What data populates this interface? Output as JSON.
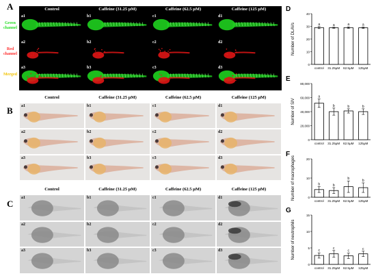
{
  "panels": {
    "A": {
      "letter": "A",
      "headers": [
        "Control",
        "Caffeine (31.25 μM)",
        "Caffeine (62.5 μM)",
        "Caffeine (125 μM)"
      ],
      "rows": [
        {
          "label": "Green channel",
          "color": "#22dd22",
          "cells": [
            "a1",
            "b1",
            "c1",
            "d1"
          ]
        },
        {
          "label": "Red channel",
          "color": "#ff2a2a",
          "cells": [
            "a2",
            "b2",
            "c2",
            "d2"
          ]
        },
        {
          "label": "Merged",
          "color": "#f2c200",
          "cells": [
            "a3",
            "b3",
            "c3",
            "d3"
          ]
        }
      ]
    },
    "B": {
      "letter": "B",
      "headers": [
        "Control",
        "Caffeine (31.25 μM)",
        "Caffeine (62.5 μM)",
        "Caffeine (125 μM)"
      ],
      "rows": [
        {
          "cells": [
            "a1",
            "b1",
            "c1",
            "d1"
          ]
        },
        {
          "cells": [
            "a2",
            "b2",
            "c2",
            "d2"
          ]
        },
        {
          "cells": [
            "a3",
            "b3",
            "c3",
            "d3"
          ]
        }
      ]
    },
    "C": {
      "letter": "C",
      "headers": [
        "Control",
        "Caffeine (31.25 μM)",
        "Caffeine (62.5 μM)",
        "Caffeine (125 μM)"
      ],
      "rows": [
        {
          "cells": [
            "a1",
            "b1",
            "c1",
            "d1"
          ]
        },
        {
          "cells": [
            "a2",
            "b2",
            "c2",
            "d2"
          ]
        },
        {
          "cells": [
            "a3",
            "b3",
            "c3",
            "d3"
          ]
        }
      ]
    }
  },
  "colors": {
    "fluor_bg": "#000000",
    "green": "#1fd11f",
    "red": "#e01515",
    "bright_bg": "#e6e4e2",
    "bright_embryo": "#d9a38c",
    "bright_yolk": "#e8b46a",
    "gray_bg": "#d4d4d4",
    "gray_embryo": "#8a8a8a"
  },
  "chart_data": [
    {
      "letter": "D",
      "type": "bar",
      "categories": [
        "control",
        "31.25μM",
        "62.5μM",
        "125μM"
      ],
      "values": [
        29,
        28.9,
        29,
        28.9
      ],
      "errors": [
        0.8,
        0.4,
        0.6,
        0.5
      ],
      "letters": [
        "a",
        "a",
        "a",
        "a"
      ],
      "ylabel": "Number of DLAVs",
      "ylim": [
        0,
        40
      ],
      "yticks": [
        "0",
        "10",
        "20",
        "30",
        "40"
      ]
    },
    {
      "letter": "E",
      "type": "bar",
      "categories": [
        "control",
        "31.25μM",
        "62.5μM",
        "125μM"
      ],
      "values": [
        52000,
        40000,
        41000,
        40000
      ],
      "errors": [
        6000,
        5000,
        3000,
        4000
      ],
      "letters": [
        "a",
        "b",
        "b",
        "b"
      ],
      "ylabel": "Number of SIV",
      "ylim": [
        0,
        80000
      ],
      "yticks": [
        "0",
        "20,000",
        "40,000",
        "60,000",
        "80,000"
      ]
    },
    {
      "letter": "F",
      "type": "bar",
      "categories": [
        "control",
        "31.25μM",
        "62.5μM",
        "125μM"
      ],
      "values": [
        4,
        3.5,
        5.5,
        5
      ],
      "errors": [
        1.5,
        1.5,
        3,
        2.5
      ],
      "letters": [
        "b",
        "b",
        "b",
        "b"
      ],
      "ylabel": "Number of macrophages",
      "ylim": [
        0,
        20
      ],
      "yticks": [
        "0",
        "10",
        "20"
      ]
    },
    {
      "letter": "G",
      "type": "bar",
      "categories": [
        "control",
        "31.25μM",
        "62.5μM",
        "125μM"
      ],
      "values": [
        2.7,
        3.2,
        2.6,
        3.2
      ],
      "errors": [
        0.8,
        1.0,
        0.8,
        0.8
      ],
      "letters": [
        "c",
        "c",
        "c",
        "c"
      ],
      "ylabel": "Number of neutrophils",
      "ylim": [
        0,
        15
      ],
      "yticks": [
        "0",
        "5",
        "10",
        "15"
      ]
    }
  ]
}
